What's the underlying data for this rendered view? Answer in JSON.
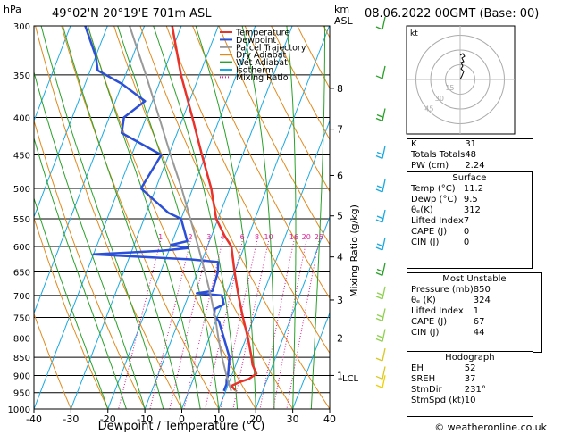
{
  "header": {
    "pressure_unit": "hPa",
    "location": "49°02'N  20°19'E  701m  ASL",
    "height_unit_km": "km",
    "height_unit_asl": "ASL",
    "datetime": "08.06.2022  00GMT  (Base: 00)"
  },
  "legend": [
    {
      "label": "Temperature",
      "color": "#e8322a"
    },
    {
      "label": "Dewpoint",
      "color": "#2b4fd6"
    },
    {
      "label": "Parcel Trajectory",
      "color": "#999999"
    },
    {
      "label": "Dry Adiabat",
      "color": "#e08a1e"
    },
    {
      "label": "Wet Adiabat",
      "color": "#2aa12a"
    },
    {
      "label": "Isotherm",
      "color": "#19a9e0"
    },
    {
      "label": "Mixing Ratio",
      "color": "#e0209a"
    }
  ],
  "chart_data": {
    "type": "line",
    "xlabel": "Dewpoint / Temperature (°C)",
    "ylabel": "Mixing Ratio (g/kg)",
    "pressure_levels": [
      300,
      350,
      400,
      450,
      500,
      550,
      600,
      650,
      700,
      750,
      800,
      850,
      900,
      950,
      1000
    ],
    "x_ticks": [
      -40,
      -30,
      -20,
      -10,
      0,
      10,
      20,
      30,
      40
    ],
    "x_range": [
      -40,
      40
    ],
    "p_range": [
      300,
      1000
    ],
    "km_ticks": [
      {
        "label": "8",
        "p": 365
      },
      {
        "label": "7",
        "p": 415
      },
      {
        "label": "6",
        "p": 480
      },
      {
        "label": "5",
        "p": 545
      },
      {
        "label": "4",
        "p": 620
      },
      {
        "label": "3",
        "p": 710
      },
      {
        "label": "2",
        "p": 800
      },
      {
        "label": "1",
        "p": 900
      }
    ],
    "lcl_label": "LCL",
    "lcl_p": 907,
    "mixing_ratio_labels": [
      "1",
      "2",
      "3",
      "4",
      "6",
      "8",
      "10",
      "16",
      "20",
      "25"
    ],
    "mixing_ratio_p": 590,
    "series": [
      {
        "name": "Temperature",
        "points": [
          [
            943,
            12.5
          ],
          [
            930,
            11.0
          ],
          [
            918,
            13.0
          ],
          [
            910,
            15.0
          ],
          [
            895,
            16.5
          ],
          [
            870,
            14.5
          ],
          [
            850,
            13.5
          ],
          [
            800,
            10.5
          ],
          [
            750,
            7.0
          ],
          [
            700,
            3.5
          ],
          [
            650,
            0.0
          ],
          [
            600,
            -3.5
          ],
          [
            580,
            -6.5
          ],
          [
            550,
            -10.5
          ],
          [
            500,
            -15.0
          ],
          [
            450,
            -21.0
          ],
          [
            400,
            -27.5
          ],
          [
            350,
            -35.0
          ],
          [
            300,
            -42.5
          ]
        ]
      },
      {
        "name": "Dewpoint",
        "points": [
          [
            945,
            9.5
          ],
          [
            925,
            9.5
          ],
          [
            910,
            9.0
          ],
          [
            900,
            9.0
          ],
          [
            850,
            7.5
          ],
          [
            800,
            4.0
          ],
          [
            760,
            1.0
          ],
          [
            745,
            -1.0
          ],
          [
            730,
            -1.5
          ],
          [
            720,
            0.5
          ],
          [
            700,
            -1.0
          ],
          [
            695,
            -8.0
          ],
          [
            690,
            -4.0
          ],
          [
            650,
            -4.5
          ],
          [
            630,
            -5.5
          ],
          [
            625,
            -13.0
          ],
          [
            615,
            -40.0
          ],
          [
            608,
            -22.0
          ],
          [
            603,
            -15.0
          ],
          [
            597,
            -20.0
          ],
          [
            590,
            -16.0
          ],
          [
            585,
            -16.5
          ],
          [
            550,
            -20.0
          ],
          [
            540,
            -24.0
          ],
          [
            500,
            -34.0
          ],
          [
            450,
            -32.0
          ],
          [
            420,
            -45.0
          ],
          [
            400,
            -46.0
          ],
          [
            380,
            -42.0
          ],
          [
            360,
            -50.0
          ],
          [
            345,
            -58.0
          ],
          [
            330,
            -60.0
          ],
          [
            300,
            -66.0
          ]
        ]
      },
      {
        "name": "Parcel Trajectory",
        "points": [
          [
            945,
            11.5
          ],
          [
            907,
            9.0
          ],
          [
            850,
            5.5
          ],
          [
            800,
            2.5
          ],
          [
            750,
            -0.5
          ],
          [
            700,
            -4.0
          ],
          [
            650,
            -8.0
          ],
          [
            600,
            -12.5
          ],
          [
            550,
            -17.5
          ],
          [
            500,
            -23.0
          ],
          [
            450,
            -29.5
          ],
          [
            400,
            -36.5
          ],
          [
            350,
            -44.5
          ],
          [
            300,
            -54.0
          ]
        ]
      }
    ]
  },
  "winds": [
    {
      "p": 300,
      "color": "#2aa12a"
    },
    {
      "p": 350,
      "color": "#2aa12a"
    },
    {
      "p": 400,
      "color": "#2aa12a"
    },
    {
      "p": 450,
      "color": "#19a9e0"
    },
    {
      "p": 500,
      "color": "#19a9e0"
    },
    {
      "p": 550,
      "color": "#19a9e0"
    },
    {
      "p": 600,
      "color": "#19a9e0"
    },
    {
      "p": 650,
      "color": "#2aa12a"
    },
    {
      "p": 700,
      "color": "#8fd14f"
    },
    {
      "p": 750,
      "color": "#8fd14f"
    },
    {
      "p": 800,
      "color": "#8fd14f"
    },
    {
      "p": 850,
      "color": "#d8c820"
    },
    {
      "p": 900,
      "color": "#d8c820"
    },
    {
      "p": 925,
      "color": "#f0d000"
    }
  ],
  "hodograph": {
    "unit": "kt",
    "rings": [
      "45",
      "30",
      "15"
    ],
    "trace": [
      [
        0,
        0
      ],
      [
        2,
        -4
      ],
      [
        4,
        -9
      ],
      [
        1,
        -12
      ],
      [
        3,
        -15
      ],
      [
        1,
        -19
      ],
      [
        4,
        -20
      ],
      [
        2,
        -24
      ],
      [
        5,
        -26
      ],
      [
        3,
        -29
      ],
      [
        0,
        -27
      ]
    ]
  },
  "indices": [
    {
      "label": "K",
      "value": "31"
    },
    {
      "label": "Totals Totals",
      "value": "48"
    },
    {
      "label": "PW (cm)",
      "value": "2.24"
    }
  ],
  "surface": {
    "title": "Surface",
    "rows": [
      {
        "label": "Temp (°C)",
        "value": "11.2"
      },
      {
        "label": "Dewp (°C)",
        "value": "9.5"
      },
      {
        "label": "θₑ(K)",
        "value": "312"
      },
      {
        "label": "Lifted Index",
        "value": "7"
      },
      {
        "label": "CAPE (J)",
        "value": "0"
      },
      {
        "label": "CIN (J)",
        "value": "0"
      }
    ]
  },
  "most_unstable": {
    "title": "Most Unstable",
    "rows": [
      {
        "label": "Pressure (mb)",
        "value": "850"
      },
      {
        "label": "θₑ (K)",
        "value": "324"
      },
      {
        "label": "Lifted Index",
        "value": "1"
      },
      {
        "label": "CAPE (J)",
        "value": "67"
      },
      {
        "label": "CIN (J)",
        "value": "44"
      }
    ]
  },
  "hodograph_table": {
    "title": "Hodograph",
    "rows": [
      {
        "label": "EH",
        "value": "52"
      },
      {
        "label": "SREH",
        "value": "37"
      },
      {
        "label": "StmDir",
        "value": "231°"
      },
      {
        "label": "StmSpd (kt)",
        "value": "10"
      }
    ]
  },
  "copyright": "© weatheronline.co.uk"
}
